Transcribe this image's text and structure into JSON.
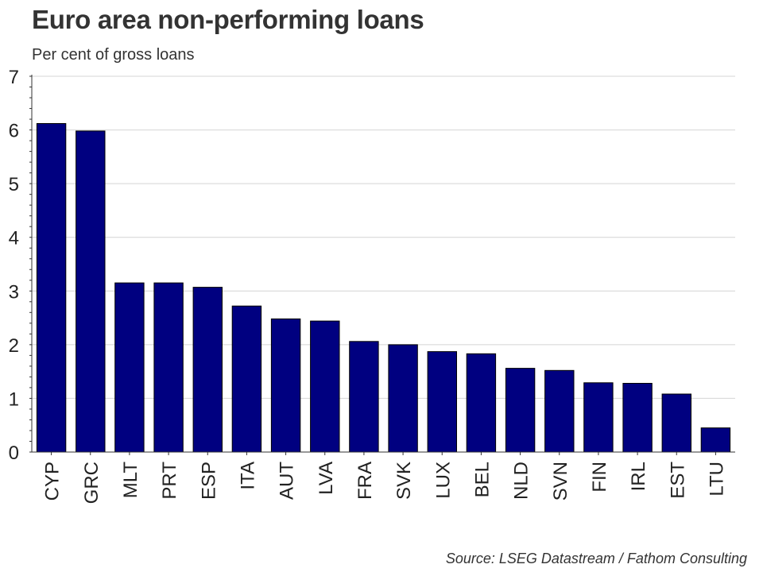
{
  "chart_data": {
    "type": "bar",
    "title": "Euro area non-performing loans",
    "subtitle": "Per cent of gross loans",
    "source": "Source: LSEG Datastream / Fathom Consulting",
    "xlabel": "",
    "ylabel": "",
    "ylim": [
      0,
      7
    ],
    "yticks": [
      "0",
      "1",
      "2",
      "3",
      "4",
      "5",
      "6",
      "7"
    ],
    "grid": true,
    "categories": [
      "CYP",
      "GRC",
      "MLT",
      "PRT",
      "ESP",
      "ITA",
      "AUT",
      "LVA",
      "FRA",
      "SVK",
      "LUX",
      "BEL",
      "NLD",
      "SVN",
      "FIN",
      "IRL",
      "EST",
      "LTU"
    ],
    "values": [
      6.12,
      5.98,
      3.15,
      3.15,
      3.07,
      2.72,
      2.48,
      2.44,
      2.06,
      2.0,
      1.87,
      1.83,
      1.56,
      1.52,
      1.29,
      1.28,
      1.08,
      0.45
    ],
    "colors": {
      "bar": "#000080",
      "bar_border": "#000000",
      "grid": "#d4d4d4",
      "axis": "#333333"
    }
  }
}
